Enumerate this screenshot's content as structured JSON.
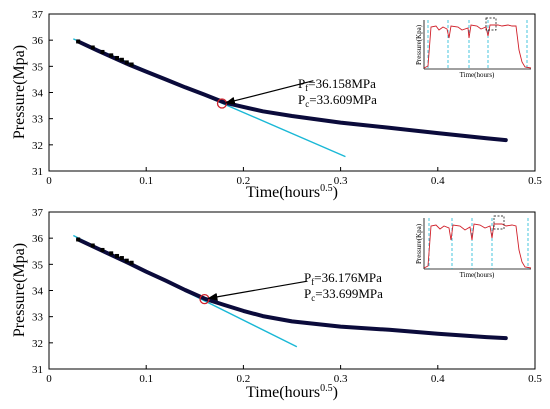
{
  "colors": {
    "data_curve": "#0b0b3b",
    "tangent": "#1ab8d6",
    "marker": "#d0202a",
    "inset_curve": "#d0202a",
    "inset_lines": "#1ab8d6"
  },
  "chart_data": [
    {
      "type": "line",
      "xlabel": "Time(hours",
      "xlabel_sup": "0.5",
      "xlabel_close": ")",
      "ylabel": "Pressure(Mpa)",
      "xlim": [
        0,
        0.5
      ],
      "ylim": [
        31,
        37
      ],
      "xticks": [
        "0",
        "0.1",
        "0.2",
        "0.3",
        "0.4",
        "0.5"
      ],
      "yticks": [
        "31",
        "32",
        "33",
        "34",
        "35",
        "36",
        "37"
      ],
      "x_tick_values": [
        0,
        0.1,
        0.2,
        0.3,
        0.4,
        0.5
      ],
      "y_tick_values": [
        31,
        32,
        33,
        34,
        35,
        36,
        37
      ],
      "series": [
        {
          "role": "measured",
          "x": [
            0.03,
            0.05,
            0.08,
            0.1,
            0.12,
            0.14,
            0.16,
            0.18,
            0.2,
            0.22,
            0.25,
            0.3,
            0.35,
            0.4,
            0.45,
            0.47
          ],
          "y": [
            35.95,
            35.6,
            35.1,
            34.8,
            34.5,
            34.2,
            33.92,
            33.62,
            33.45,
            33.28,
            33.1,
            32.85,
            32.65,
            32.45,
            32.25,
            32.18
          ]
        },
        {
          "role": "tangent",
          "x": [
            0.025,
            0.305
          ],
          "y": [
            36.05,
            31.55
          ]
        }
      ],
      "square_markers": {
        "x": [
          0.03,
          0.045,
          0.055,
          0.064,
          0.07,
          0.075,
          0.08,
          0.085
        ],
        "y": [
          35.95,
          35.72,
          35.55,
          35.42,
          35.32,
          35.25,
          35.15,
          35.07
        ]
      },
      "circle_marker": {
        "x": 0.178,
        "y": 33.58
      },
      "arrow": {
        "from": [
          0.272,
          34.45
        ],
        "to": [
          0.182,
          33.6
        ]
      },
      "annotation": {
        "x": 0.285,
        "y": 34.45,
        "line1": {
          "p": "P",
          "sub": "f",
          "text": "=36.158MPa"
        },
        "line2": {
          "p": "P",
          "sub": "c",
          "text": "=33.609MPa"
        }
      },
      "inset": {
        "ylabel": "Pressure(Kpa)",
        "xlabel": "Time(hours)"
      }
    },
    {
      "type": "line",
      "xlabel": "Time(hours",
      "xlabel_sup": "0.5",
      "xlabel_close": ")",
      "ylabel": "Pressure(Mpa)",
      "xlim": [
        0,
        0.5
      ],
      "ylim": [
        31,
        37
      ],
      "xticks": [
        "0",
        "0.1",
        "0.2",
        "0.3",
        "0.4",
        "0.5"
      ],
      "yticks": [
        "31",
        "32",
        "33",
        "34",
        "35",
        "36",
        "37"
      ],
      "x_tick_values": [
        0,
        0.1,
        0.2,
        0.3,
        0.4,
        0.5
      ],
      "y_tick_values": [
        31,
        32,
        33,
        34,
        35,
        36,
        37
      ],
      "series": [
        {
          "role": "measured",
          "x": [
            0.03,
            0.05,
            0.08,
            0.1,
            0.12,
            0.14,
            0.16,
            0.18,
            0.2,
            0.22,
            0.25,
            0.3,
            0.35,
            0.4,
            0.45,
            0.47
          ],
          "y": [
            35.95,
            35.6,
            35.08,
            34.72,
            34.38,
            34.02,
            33.69,
            33.45,
            33.22,
            33.02,
            32.82,
            32.62,
            32.5,
            32.35,
            32.22,
            32.18
          ]
        },
        {
          "role": "tangent",
          "x": [
            0.025,
            0.255
          ],
          "y": [
            36.1,
            31.85
          ]
        }
      ],
      "square_markers": {
        "x": [
          0.03,
          0.045,
          0.055,
          0.064,
          0.07,
          0.075,
          0.08,
          0.085
        ],
        "y": [
          35.95,
          35.72,
          35.55,
          35.42,
          35.32,
          35.24,
          35.14,
          35.06
        ]
      },
      "circle_marker": {
        "x": 0.16,
        "y": 33.67
      },
      "arrow": {
        "from": [
          0.265,
          34.35
        ],
        "to": [
          0.164,
          33.7
        ]
      },
      "annotation": {
        "x": 0.275,
        "y": 34.35,
        "line1": {
          "p": "P",
          "sub": "f",
          "text": "=36.176MPa"
        },
        "line2": {
          "p": "P",
          "sub": "c",
          "text": "=33.699MPa"
        }
      },
      "inset": {
        "ylabel": "Pressure(Kpa)",
        "xlabel": "Time(hours)"
      }
    }
  ]
}
